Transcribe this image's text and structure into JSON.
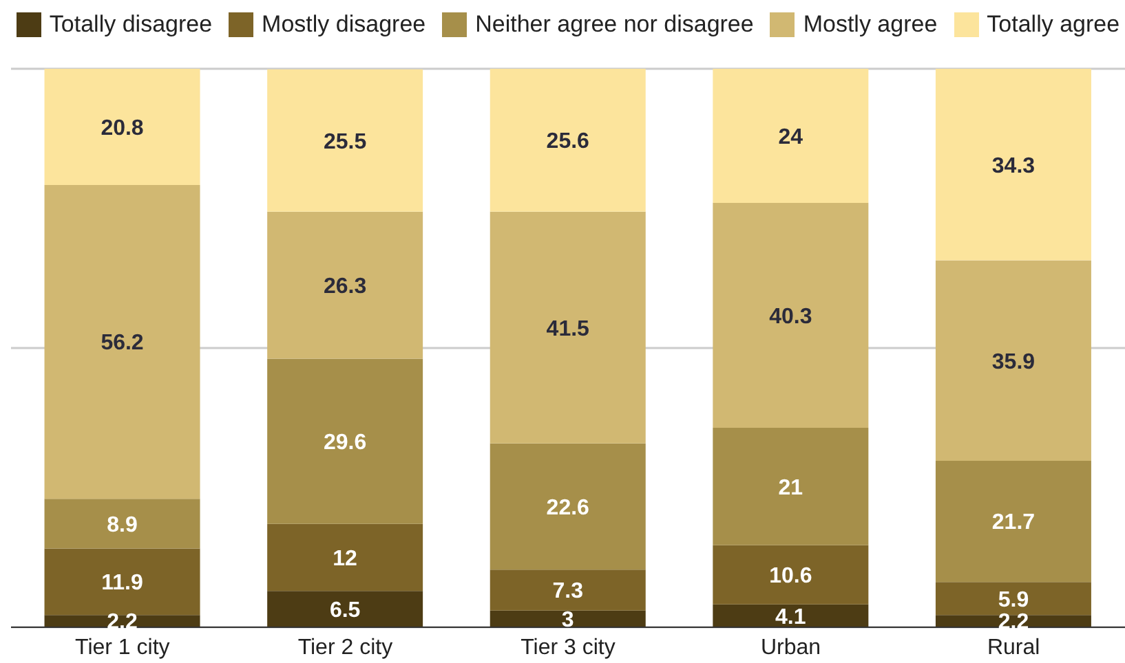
{
  "chart_data": {
    "type": "bar",
    "stacked": true,
    "categories": [
      "Tier 1 city",
      "Tier 2 city",
      "Tier 3 city",
      "Urban",
      "Rural"
    ],
    "series": [
      {
        "name": "Totally disagree",
        "color": "#4d3c14",
        "values": [
          2.2,
          6.5,
          3,
          4.1,
          2.2
        ]
      },
      {
        "name": "Mostly disagree",
        "color": "#7d6428",
        "values": [
          11.9,
          12,
          7.3,
          10.6,
          5.9
        ]
      },
      {
        "name": "Neither agree nor disagree",
        "color": "#a68f4a",
        "values": [
          8.9,
          29.6,
          22.6,
          21,
          21.7
        ]
      },
      {
        "name": "Mostly agree",
        "color": "#d1b872",
        "values": [
          56.2,
          26.3,
          41.5,
          40.3,
          35.9
        ]
      },
      {
        "name": "Totally agree",
        "color": "#fce49c",
        "values": [
          20.8,
          25.5,
          25.6,
          24,
          34.3
        ]
      }
    ],
    "ylim": [
      0,
      100
    ],
    "yticks": [
      {
        "value": 0,
        "label": null
      },
      {
        "value": 50,
        "label": null
      },
      {
        "value": 100,
        "label": null
      }
    ],
    "tick_labels": "x",
    "grid": "y",
    "legend": "top",
    "data_labels": true
  }
}
